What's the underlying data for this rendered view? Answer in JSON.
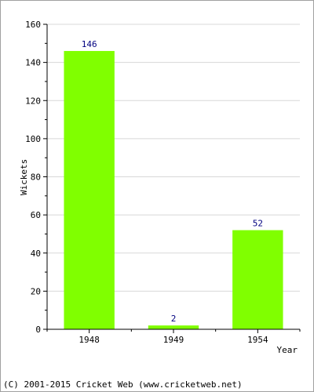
{
  "chart_data": {
    "type": "bar",
    "categories": [
      "1948",
      "1949",
      "1954"
    ],
    "values": [
      146,
      2,
      52
    ],
    "data_labels": [
      "146",
      "2",
      "52"
    ],
    "xlabel": "Year",
    "ylabel": "Wickets",
    "ylim": [
      0,
      160
    ],
    "yticks": [
      0,
      20,
      40,
      60,
      80,
      100,
      120,
      140,
      160
    ],
    "ytick_labels": [
      "0",
      "20",
      "40",
      "60",
      "80",
      "100",
      "120",
      "140",
      "160"
    ],
    "grid": true,
    "legend": "none",
    "bar_color": "#80ff00",
    "label_color": "#000080",
    "grid_color": "#d8d8d8"
  },
  "footer": {
    "copyright": "(C) 2001-2015 Cricket Web (www.cricketweb.net)"
  }
}
